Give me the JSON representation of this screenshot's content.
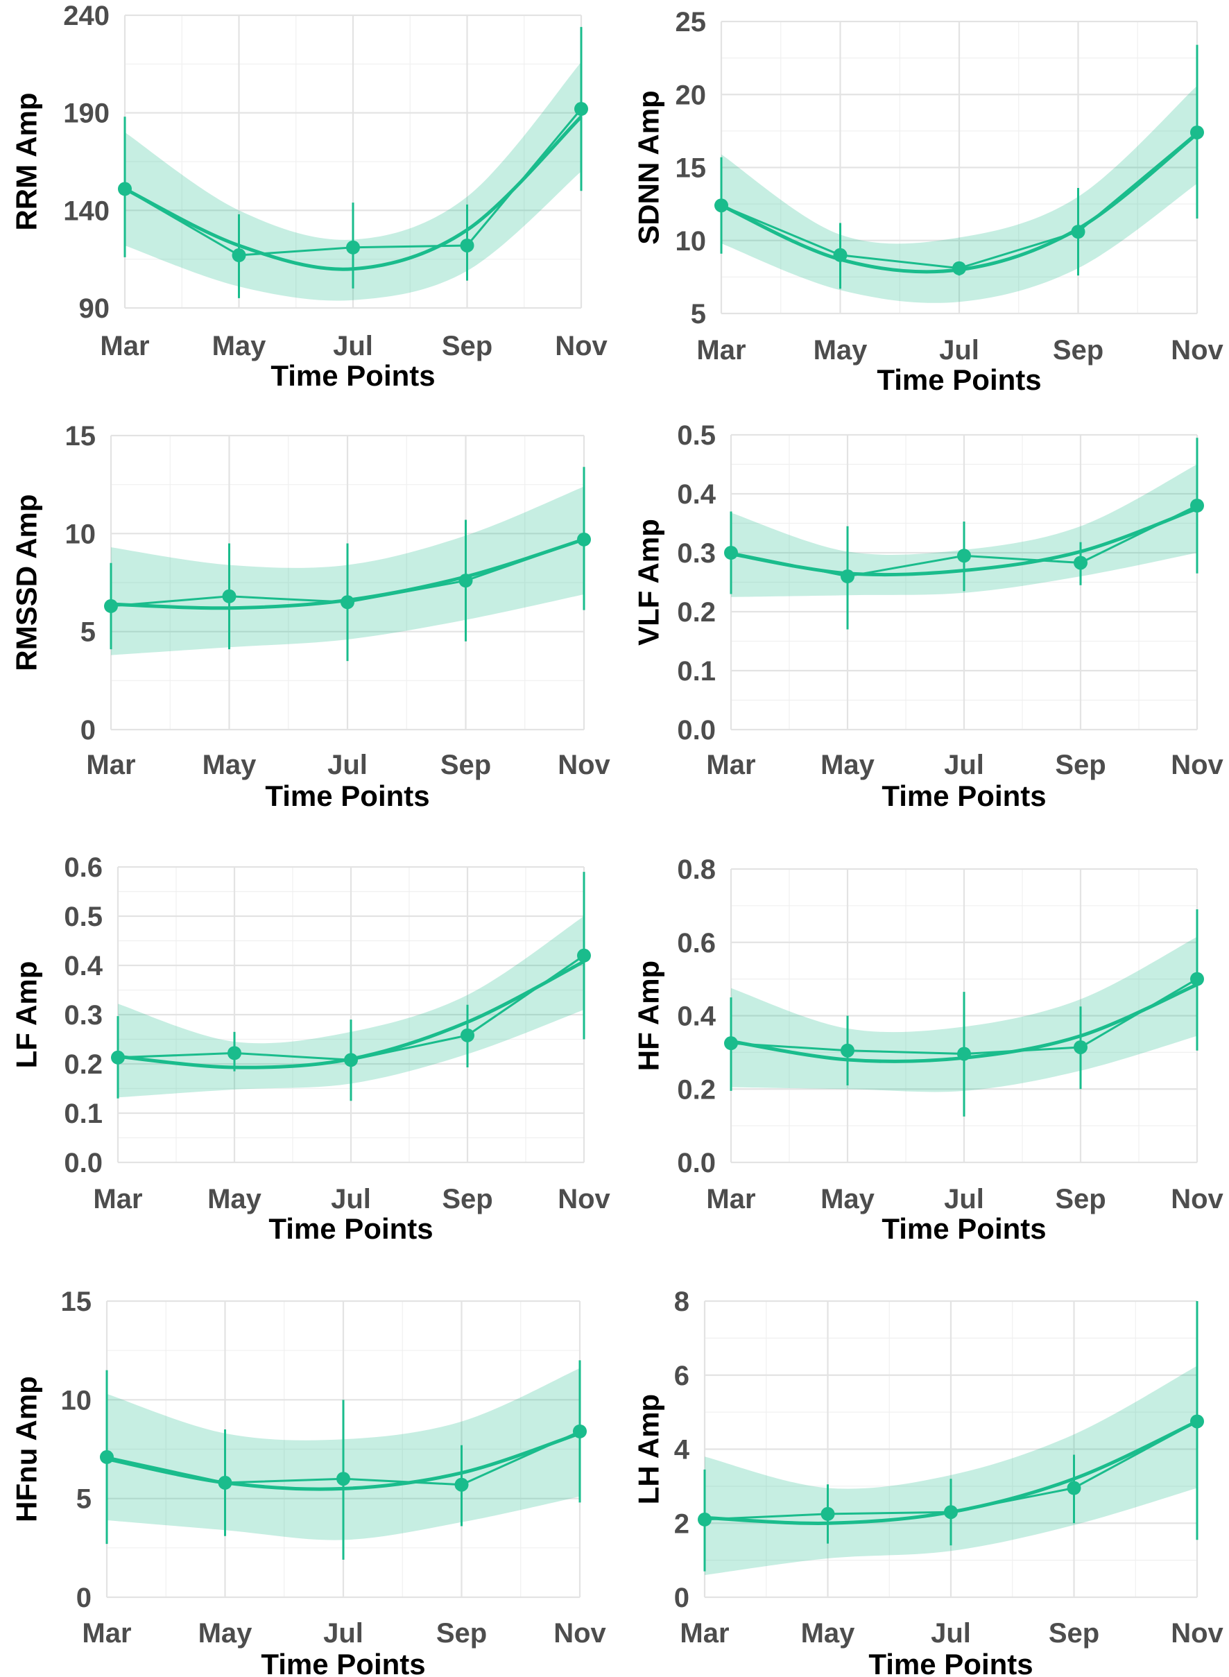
{
  "chart_data": [
    {
      "type": "line",
      "xlabel": "Time Points",
      "ylabel": "RRM Amp",
      "categories": [
        "Mar",
        "May",
        "Jul",
        "Sep",
        "Nov"
      ],
      "ylim": [
        90,
        240
      ],
      "yticks": [
        90,
        140,
        190,
        240
      ],
      "values": [
        151,
        117,
        121,
        122,
        192
      ],
      "error_low": [
        116,
        95,
        100,
        104,
        150
      ],
      "error_high": [
        188,
        138,
        144,
        143,
        234
      ],
      "fit": [
        151,
        122,
        110,
        130,
        188
      ],
      "band_low": [
        122,
        101,
        94,
        109,
        160
      ],
      "band_high": [
        180,
        140,
        125,
        147,
        216
      ],
      "grid": true,
      "legend": "none",
      "color": "#1abc8c"
    },
    {
      "type": "line",
      "xlabel": "Time Points",
      "ylabel": "SDNN Amp",
      "categories": [
        "Mar",
        "May",
        "Jul",
        "Sep",
        "Nov"
      ],
      "ylim": [
        5,
        25
      ],
      "yticks": [
        5,
        10,
        15,
        20,
        25
      ],
      "values": [
        12.4,
        9.0,
        8.1,
        10.6,
        17.4
      ],
      "error_low": [
        9.1,
        6.7,
        7.6,
        7.6,
        11.5
      ],
      "error_high": [
        15.7,
        11.2,
        8.4,
        13.6,
        23.4
      ],
      "fit": [
        12.4,
        8.7,
        8.0,
        10.8,
        17.3
      ],
      "band_low": [
        9.8,
        6.6,
        5.8,
        8.1,
        13.9
      ],
      "band_high": [
        15.9,
        10.4,
        10.2,
        13.0,
        20.6
      ],
      "grid": true,
      "legend": "none",
      "color": "#1abc8c"
    },
    {
      "type": "line",
      "xlabel": "Time Points",
      "ylabel": "RMSSD Amp",
      "categories": [
        "Mar",
        "May",
        "Jul",
        "Sep",
        "Nov"
      ],
      "ylim": [
        0,
        15
      ],
      "yticks": [
        0,
        5,
        10,
        15
      ],
      "values": [
        6.3,
        6.8,
        6.5,
        7.6,
        9.7
      ],
      "error_low": [
        4.1,
        4.1,
        3.5,
        4.5,
        6.1
      ],
      "error_high": [
        8.5,
        9.5,
        9.5,
        10.7,
        13.4
      ],
      "fit": [
        6.4,
        6.2,
        6.6,
        7.8,
        9.7
      ],
      "band_low": [
        3.8,
        4.2,
        4.6,
        5.6,
        6.9
      ],
      "band_high": [
        9.3,
        8.4,
        8.4,
        9.9,
        12.4
      ],
      "grid": true,
      "legend": "none",
      "color": "#1abc8c"
    },
    {
      "type": "line",
      "xlabel": "Time Points",
      "ylabel": "VLF Amp",
      "categories": [
        "Mar",
        "May",
        "Jul",
        "Sep",
        "Nov"
      ],
      "ylim": [
        0.0,
        0.5
      ],
      "yticks": [
        0.0,
        0.1,
        0.2,
        0.3,
        0.4,
        0.5
      ],
      "values": [
        0.3,
        0.26,
        0.295,
        0.283,
        0.38
      ],
      "error_low": [
        0.23,
        0.17,
        0.235,
        0.245,
        0.265
      ],
      "error_high": [
        0.37,
        0.345,
        0.353,
        0.318,
        0.495
      ],
      "fit": [
        0.298,
        0.265,
        0.27,
        0.302,
        0.375
      ],
      "band_low": [
        0.225,
        0.228,
        0.232,
        0.26,
        0.3
      ],
      "band_high": [
        0.368,
        0.302,
        0.305,
        0.345,
        0.45
      ],
      "grid": true,
      "legend": "none",
      "color": "#1abc8c"
    },
    {
      "type": "line",
      "xlabel": "Time Points",
      "ylabel": "LF Amp",
      "categories": [
        "Mar",
        "May",
        "Jul",
        "Sep",
        "Nov"
      ],
      "ylim": [
        0.0,
        0.6
      ],
      "yticks": [
        0.0,
        0.1,
        0.2,
        0.3,
        0.4,
        0.5,
        0.6
      ],
      "values": [
        0.213,
        0.222,
        0.208,
        0.258,
        0.42
      ],
      "error_low": [
        0.13,
        0.185,
        0.125,
        0.193,
        0.25
      ],
      "error_high": [
        0.297,
        0.265,
        0.29,
        0.32,
        0.59
      ],
      "fit": [
        0.215,
        0.193,
        0.21,
        0.285,
        0.408
      ],
      "band_low": [
        0.132,
        0.148,
        0.16,
        0.22,
        0.31
      ],
      "band_high": [
        0.322,
        0.245,
        0.265,
        0.34,
        0.5
      ],
      "grid": true,
      "legend": "none",
      "color": "#1abc8c"
    },
    {
      "type": "line",
      "xlabel": "Time Points",
      "ylabel": "HF Amp",
      "categories": [
        "Mar",
        "May",
        "Jul",
        "Sep",
        "Nov"
      ],
      "ylim": [
        0.0,
        0.8
      ],
      "yticks": [
        0.0,
        0.2,
        0.4,
        0.6,
        0.8
      ],
      "values": [
        0.325,
        0.305,
        0.296,
        0.314,
        0.5
      ],
      "error_low": [
        0.195,
        0.21,
        0.125,
        0.2,
        0.305
      ],
      "error_high": [
        0.45,
        0.4,
        0.465,
        0.425,
        0.69
      ],
      "fit": [
        0.33,
        0.28,
        0.285,
        0.345,
        0.485
      ],
      "band_low": [
        0.205,
        0.2,
        0.195,
        0.25,
        0.345
      ],
      "band_high": [
        0.475,
        0.365,
        0.37,
        0.445,
        0.615
      ],
      "grid": true,
      "legend": "none",
      "color": "#1abc8c"
    },
    {
      "type": "line",
      "xlabel": "Time Points",
      "ylabel": "HFnu Amp",
      "categories": [
        "Mar",
        "May",
        "Jul",
        "Sep",
        "Nov"
      ],
      "ylim": [
        0,
        15
      ],
      "yticks": [
        0,
        5,
        10,
        15
      ],
      "values": [
        7.1,
        5.8,
        6.0,
        5.7,
        8.4
      ],
      "error_low": [
        2.7,
        3.1,
        1.9,
        3.6,
        4.8
      ],
      "error_high": [
        11.5,
        8.5,
        10.0,
        7.7,
        12.0
      ],
      "fit": [
        7.0,
        5.8,
        5.5,
        6.3,
        8.3
      ],
      "band_low": [
        3.9,
        3.4,
        2.9,
        3.8,
        5.1
      ],
      "band_high": [
        10.3,
        8.3,
        8.0,
        8.9,
        11.6
      ],
      "grid": true,
      "legend": "none",
      "color": "#1abc8c"
    },
    {
      "type": "line",
      "xlabel": "Time Points",
      "ylabel": "LH Amp",
      "categories": [
        "Mar",
        "May",
        "Jul",
        "Sep",
        "Nov"
      ],
      "ylim": [
        0,
        8
      ],
      "yticks": [
        0,
        2,
        4,
        6,
        8
      ],
      "values": [
        2.1,
        2.25,
        2.3,
        2.95,
        4.75
      ],
      "error_low": [
        0.7,
        1.45,
        1.4,
        2.0,
        1.55
      ],
      "error_high": [
        3.45,
        3.05,
        3.2,
        3.85,
        8.0
      ],
      "fit": [
        2.15,
        2.0,
        2.3,
        3.2,
        4.75
      ],
      "band_low": [
        0.6,
        1.05,
        1.25,
        1.95,
        2.95
      ],
      "band_high": [
        3.8,
        2.95,
        3.3,
        4.4,
        6.25
      ],
      "grid": true,
      "legend": "none",
      "color": "#1abc8c"
    }
  ]
}
